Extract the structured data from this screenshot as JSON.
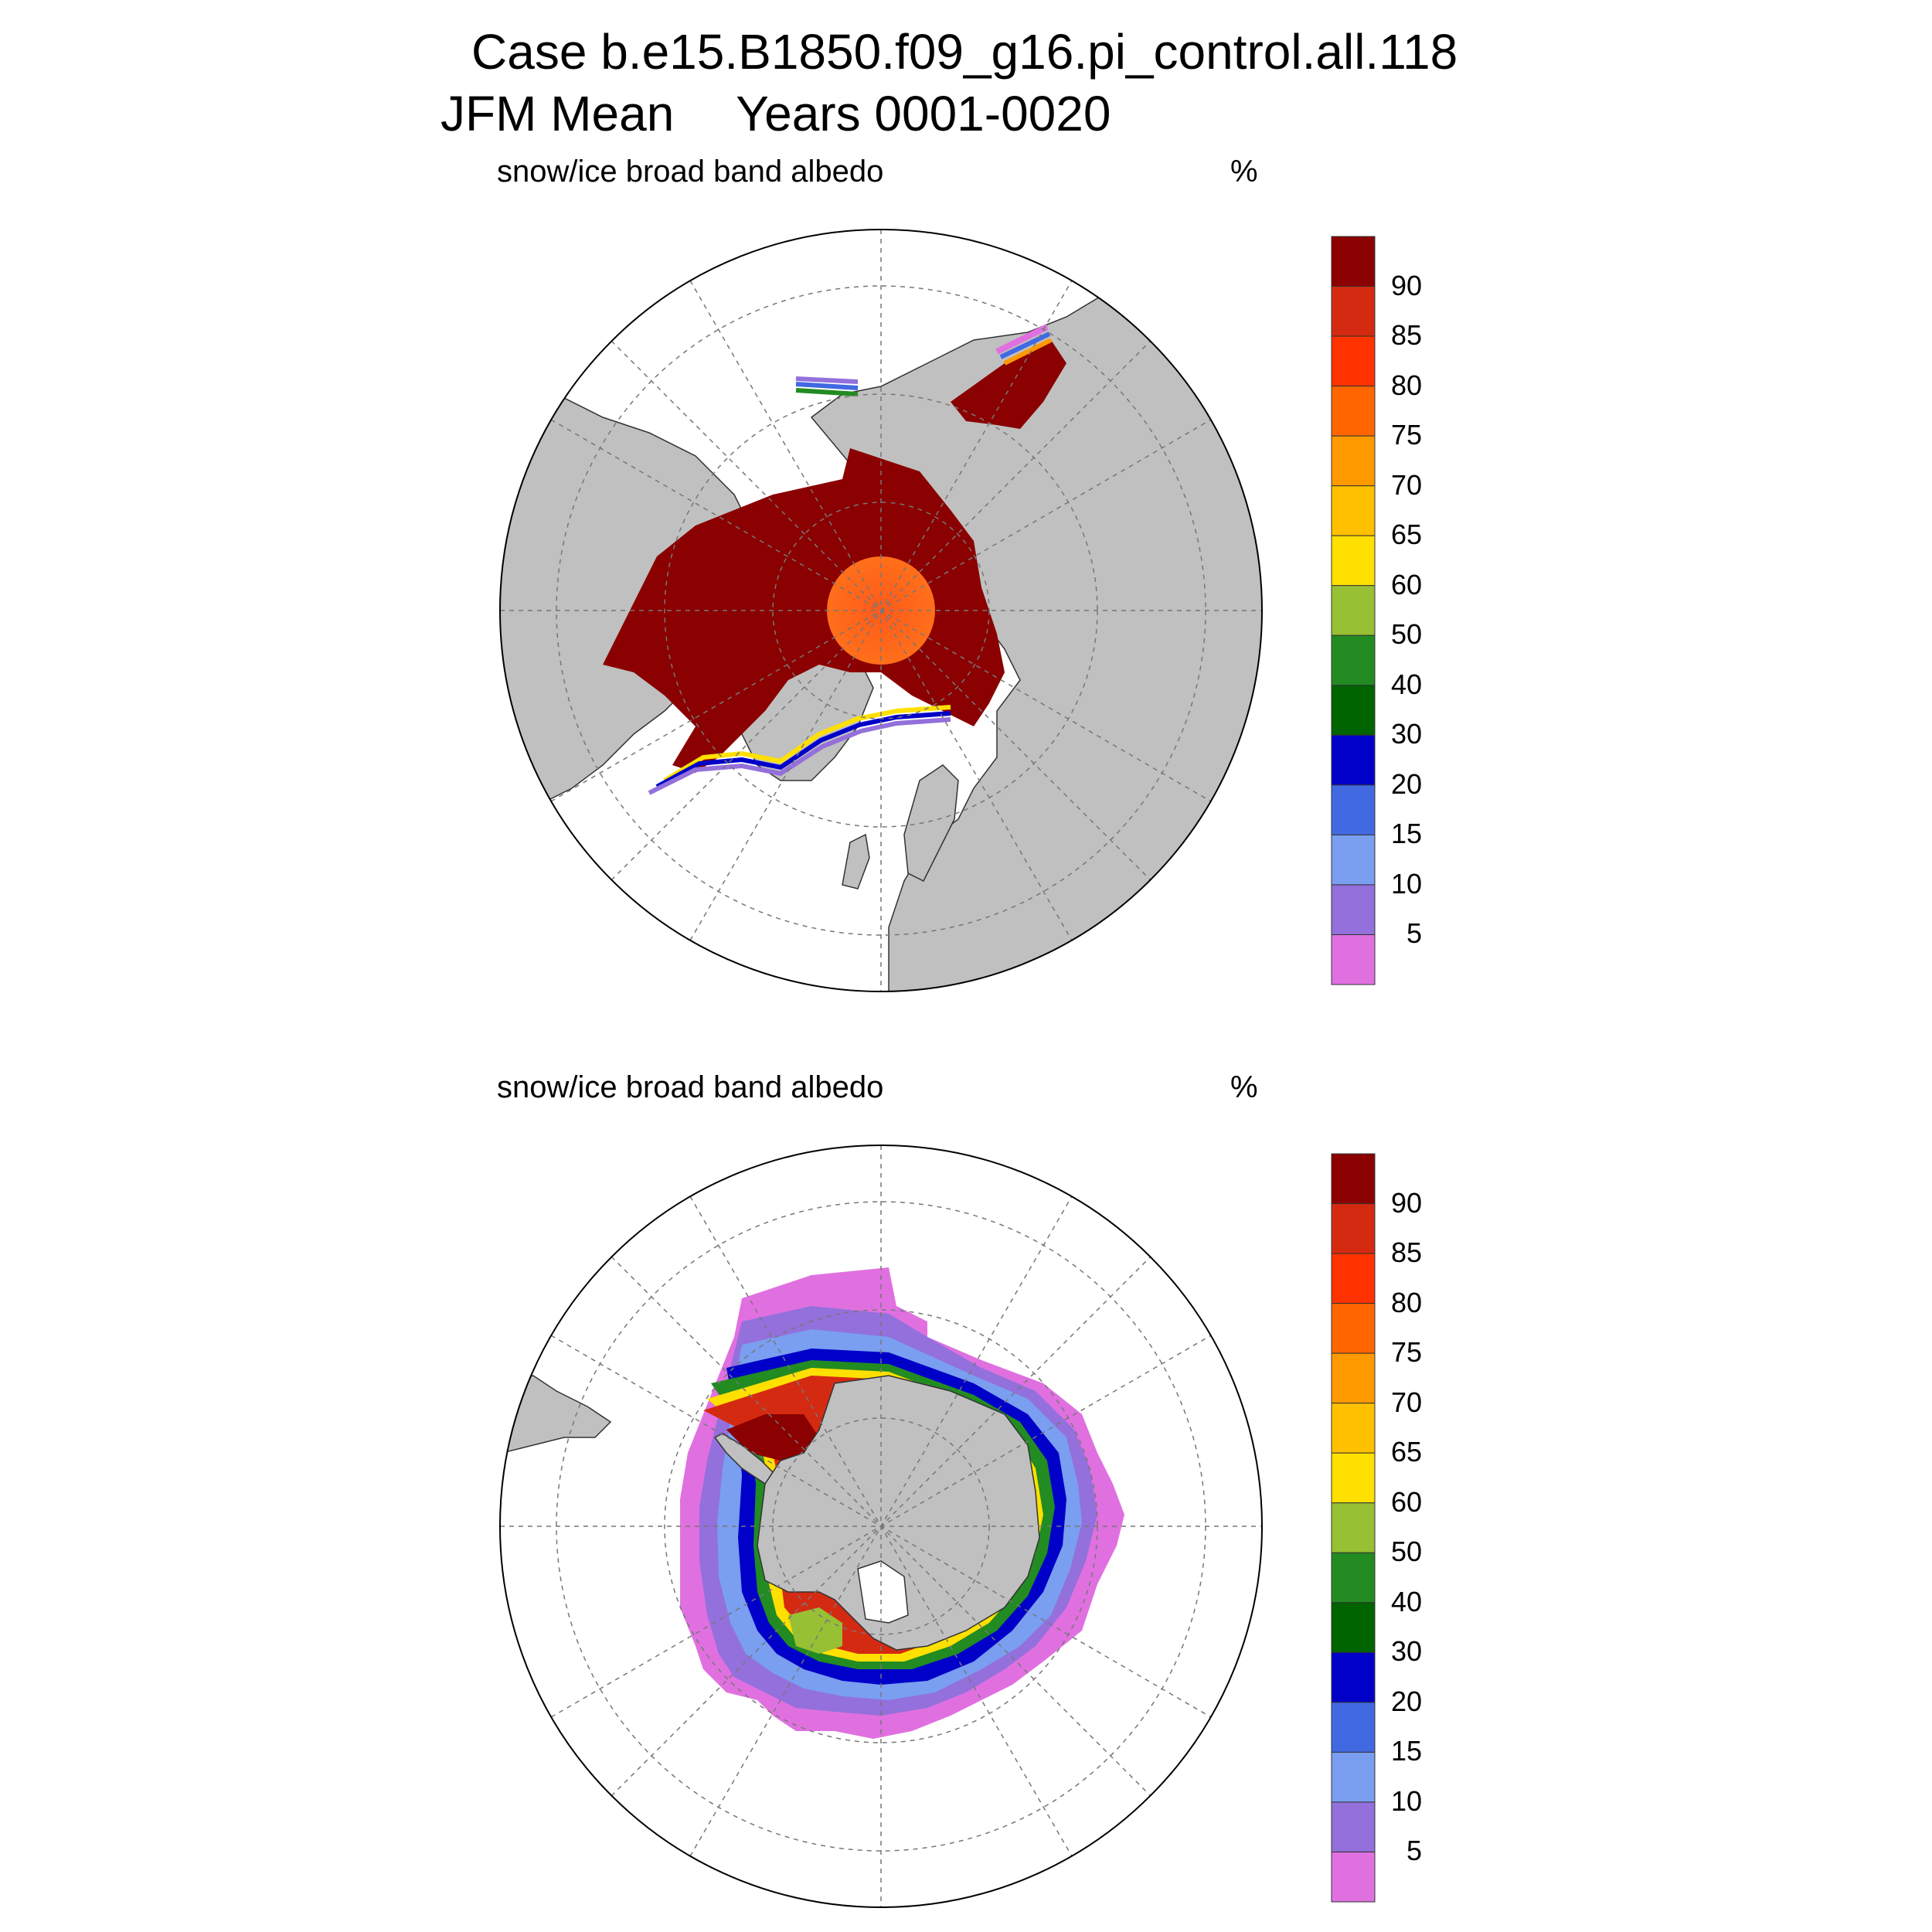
{
  "title": {
    "line1": "Case b.e15.B1850.f09_g16.pi_control.all.118",
    "season": "JFM Mean",
    "years": "Years 0001-0020"
  },
  "panels": [
    {
      "id": "north",
      "label": "snow/ice broad band albedo",
      "unit": "%"
    },
    {
      "id": "south",
      "label": "snow/ice broad band albedo",
      "unit": "%"
    }
  ],
  "colorbar": {
    "labels": [
      "90",
      "85",
      "80",
      "75",
      "70",
      "65",
      "60",
      "50",
      "40",
      "30",
      "20",
      "15",
      "10",
      "5"
    ],
    "colors": [
      "#8b0000",
      "#d42a12",
      "#ff3300",
      "#ff6600",
      "#ff9900",
      "#ffc000",
      "#ffe000",
      "#98c034",
      "#228b22",
      "#006400",
      "#0000c8",
      "#4169e1",
      "#7a9ef0",
      "#9370db",
      "#e070e0"
    ]
  },
  "map_style": {
    "land_color": "#c0c0c0",
    "ocean_color": "#ffffff",
    "grid_style": "dashed lat/lon"
  }
}
